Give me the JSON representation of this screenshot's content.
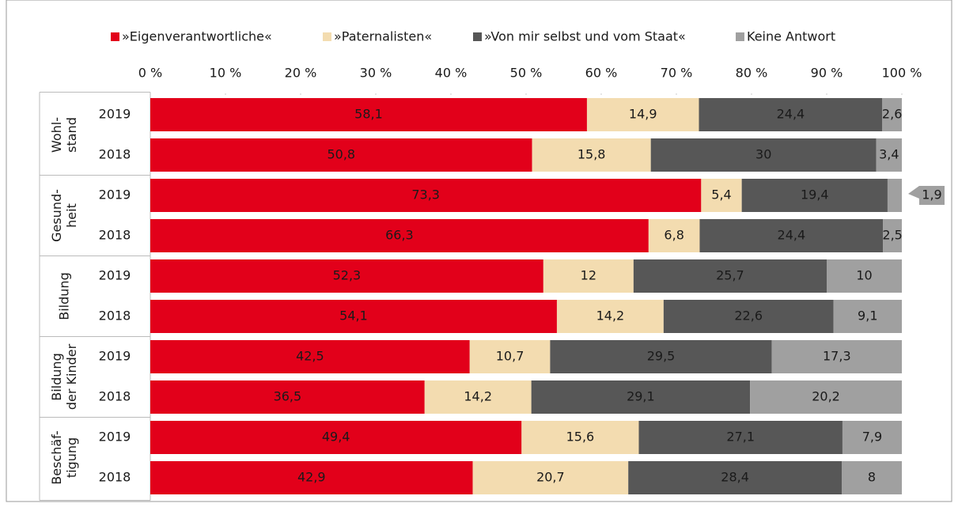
{
  "chart_data": {
    "type": "stacked_bar_horizontal",
    "group_labels": [
      [
        "Wohl-",
        "stand"
      ],
      [
        "Gesund-",
        "heit"
      ],
      [
        "Bildung"
      ],
      [
        "Bildung",
        "der Kinder"
      ],
      [
        "Beschäf-",
        "tigung"
      ]
    ],
    "categories": [
      "2019",
      "2018",
      "2019",
      "2018",
      "2019",
      "2018",
      "2019",
      "2018",
      "2019",
      "2018"
    ],
    "series": [
      {
        "name": "»Eigenverantwortliche«",
        "color": "#e2001a",
        "label_color": "#ffffff",
        "values": [
          58.1,
          50.8,
          73.3,
          66.3,
          52.3,
          54.1,
          42.5,
          36.5,
          49.4,
          42.9
        ],
        "value_labels": [
          "58,1",
          "50,8",
          "73,3",
          "66,3",
          "52,3",
          "54,1",
          "42,5",
          "36,5",
          "49,4",
          "42,9"
        ]
      },
      {
        "name": "»Paternalisten«",
        "color": "#f3dcb0",
        "label_color": "#1a1a1a",
        "values": [
          14.9,
          15.8,
          5.4,
          6.8,
          12,
          14.2,
          10.7,
          14.2,
          15.6,
          20.7
        ],
        "value_labels": [
          "14,9",
          "15,8",
          "5,4",
          "6,8",
          "12",
          "14,2",
          "10,7",
          "14,2",
          "15,6",
          "20,7"
        ]
      },
      {
        "name": "»Von mir selbst und vom Staat«",
        "color": "#575757",
        "label_color": "#ffffff",
        "values": [
          24.4,
          30,
          19.4,
          24.4,
          25.7,
          22.6,
          29.5,
          29.1,
          27.1,
          28.4
        ],
        "value_labels": [
          "24,4",
          "30",
          "19,4",
          "24,4",
          "25,7",
          "22,6",
          "29,5",
          "29,1",
          "27,1",
          "28,4"
        ]
      },
      {
        "name": "Keine Antwort",
        "color": "#a0a0a0",
        "label_color": "#1a1a1a",
        "values": [
          2.6,
          3.4,
          1.9,
          2.5,
          10,
          9.1,
          17.3,
          20.2,
          7.9,
          8
        ],
        "value_labels": [
          "2,6",
          "3,4",
          "1,9",
          "2,5",
          "10",
          "9,1",
          "17,3",
          "20,2",
          "7,9",
          "8"
        ]
      }
    ],
    "xlim": [
      0,
      100
    ],
    "xticks": [
      {
        "value": 0,
        "label": "0 %"
      },
      {
        "value": 10,
        "label": "10 %"
      },
      {
        "value": 20,
        "label": "20 %"
      },
      {
        "value": 30,
        "label": "30 %"
      },
      {
        "value": 40,
        "label": "40 %"
      },
      {
        "value": 50,
        "label": "50 %"
      },
      {
        "value": 60,
        "label": "60 %"
      },
      {
        "value": 70,
        "label": "70 %"
      },
      {
        "value": 80,
        "label": "80 %"
      },
      {
        "value": 90,
        "label": "90 %"
      },
      {
        "value": 100,
        "label": "100 %"
      }
    ],
    "legend": "top"
  }
}
